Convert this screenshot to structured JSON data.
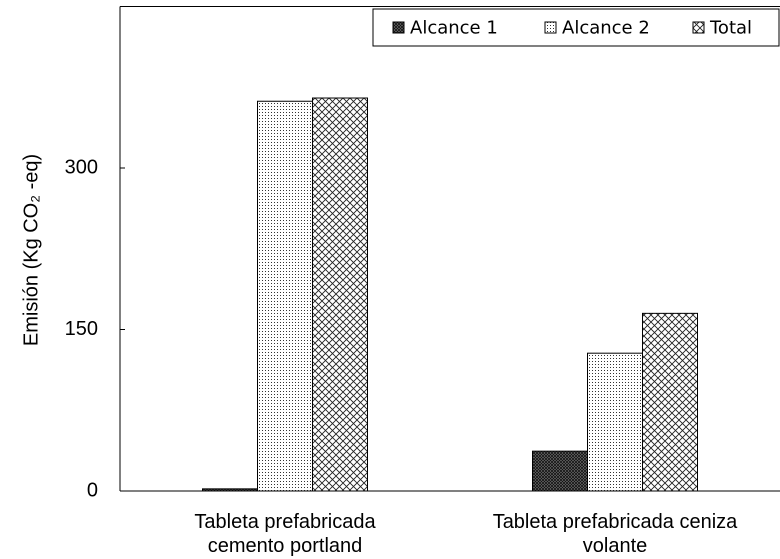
{
  "chart_data": {
    "type": "bar",
    "y_label": "Emisión (Kg CO₂ -eq)",
    "categories": [
      "Tableta prefabricada\ncemento portland",
      "Tableta prefabricada ceniza\nvolante"
    ],
    "series": [
      {
        "name": "Alcance 1",
        "color": "#000000",
        "pattern": "dense",
        "values": [
          2,
          37
        ]
      },
      {
        "name": "Alcance 2",
        "color": "#000000",
        "pattern": "dots",
        "values": [
          362,
          128
        ]
      },
      {
        "name": "Total",
        "color": "#000000",
        "pattern": "crosshatch",
        "values": [
          365,
          165
        ]
      }
    ],
    "ylim": [
      0,
      450
    ],
    "yticks": [
      0,
      150,
      300
    ],
    "grid": false,
    "legend": "top-right"
  }
}
